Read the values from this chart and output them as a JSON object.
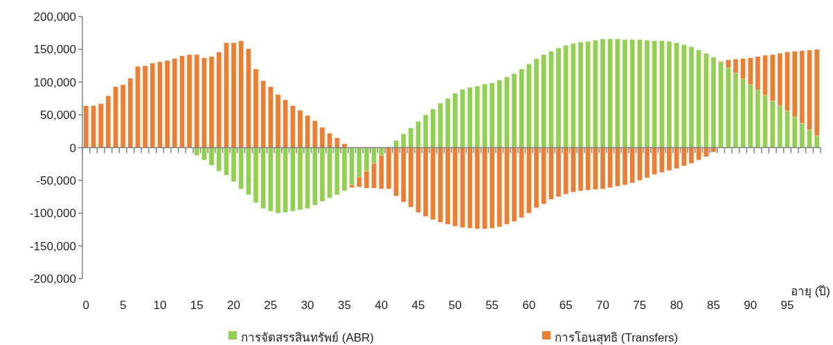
{
  "chart_data": {
    "type": "bar",
    "stacked": true,
    "xlabel": "อายุ (ปี)",
    "legend": "bottom",
    "categories": [
      "0",
      null,
      null,
      null,
      null,
      "5",
      null,
      null,
      null,
      null,
      "10",
      null,
      null,
      null,
      null,
      "15",
      null,
      null,
      null,
      null,
      "20",
      null,
      null,
      null,
      null,
      "25",
      null,
      null,
      null,
      null,
      "30",
      null,
      null,
      null,
      null,
      "35",
      null,
      null,
      null,
      null,
      "40",
      null,
      null,
      null,
      null,
      "45",
      null,
      null,
      null,
      null,
      "50",
      null,
      null,
      null,
      null,
      "55",
      null,
      null,
      null,
      null,
      "60",
      null,
      null,
      null,
      null,
      "65",
      null,
      null,
      null,
      null,
      "70",
      null,
      null,
      null,
      null,
      "75",
      null,
      null,
      null,
      null,
      "80",
      null,
      null,
      null,
      null,
      "85",
      null,
      null,
      null,
      null,
      "90",
      null,
      null,
      null,
      null,
      "95",
      null,
      null,
      null,
      null
    ],
    "ylim": [
      -200000,
      200000
    ],
    "yticks": [
      {
        "value": -200000,
        "label": "-200,000"
      },
      {
        "value": -150000,
        "label": "-150,000"
      },
      {
        "value": -100000,
        "label": "-100,000"
      },
      {
        "value": -50000,
        "label": "-50,000"
      },
      {
        "value": 0,
        "label": "0"
      },
      {
        "value": 50000,
        "label": "50,000"
      },
      {
        "value": 100000,
        "label": "100,000"
      },
      {
        "value": 150000,
        "label": "150,000"
      },
      {
        "value": 200000,
        "label": "200,000"
      }
    ],
    "series": [
      {
        "name": "การจัดสรรสินทรัพย์ (ABR)",
        "color": "#92d050",
        "values": [
          0,
          0,
          0,
          0,
          0,
          0,
          0,
          0,
          0,
          0,
          0,
          0,
          0,
          0,
          0,
          -12000,
          -19000,
          -27000,
          -36000,
          -42000,
          -52000,
          -63000,
          -72000,
          -84000,
          -93000,
          -97000,
          -100000,
          -99000,
          -97000,
          -95000,
          -93000,
          -88000,
          -82000,
          -77000,
          -72000,
          -66000,
          -57000,
          -45000,
          -36000,
          -24000,
          -12000,
          1000,
          11000,
          21000,
          30000,
          40000,
          50000,
          59000,
          68000,
          75000,
          83000,
          89000,
          92000,
          94000,
          97000,
          99000,
          103000,
          108000,
          113000,
          120000,
          128000,
          136000,
          142000,
          147000,
          152000,
          156000,
          159000,
          161000,
          162000,
          164000,
          166000,
          166000,
          166000,
          165000,
          165000,
          165000,
          164000,
          163000,
          163000,
          162000,
          160000,
          157000,
          154000,
          149000,
          144000,
          138000,
          131000,
          122000,
          114000,
          105000,
          96000,
          88000,
          80000,
          71000,
          64000,
          56000,
          47000,
          37000,
          27000,
          18000
        ]
      },
      {
        "name": "การโอนสุทธิ (Transfers)",
        "color": "#ed7d31",
        "values": [
          64000,
          64000,
          67000,
          79000,
          93000,
          96000,
          106000,
          124000,
          125000,
          129000,
          131000,
          133000,
          136000,
          140000,
          142000,
          142000,
          137000,
          139000,
          146000,
          160000,
          160000,
          163000,
          151000,
          120000,
          102000,
          93000,
          81000,
          73000,
          64000,
          57000,
          49000,
          41000,
          31000,
          22000,
          15000,
          6000,
          -4000,
          -15000,
          -26000,
          -38000,
          -51000,
          -63000,
          -74000,
          -83000,
          -91000,
          -99000,
          -105000,
          -110000,
          -114000,
          -117000,
          -120000,
          -122000,
          -123000,
          -124000,
          -124000,
          -123000,
          -121000,
          -117000,
          -113000,
          -107000,
          -100000,
          -92000,
          -86000,
          -79000,
          -75000,
          -71000,
          -68000,
          -66000,
          -65000,
          -64000,
          -63000,
          -61000,
          -59000,
          -57000,
          -54000,
          -50000,
          -46000,
          -41000,
          -38000,
          -35000,
          -32000,
          -28000,
          -24000,
          -19000,
          -14000,
          -7000,
          1000,
          12000,
          21000,
          31000,
          41000,
          51000,
          61000,
          71000,
          80000,
          90000,
          100000,
          111000,
          122000,
          132000
        ]
      }
    ]
  }
}
